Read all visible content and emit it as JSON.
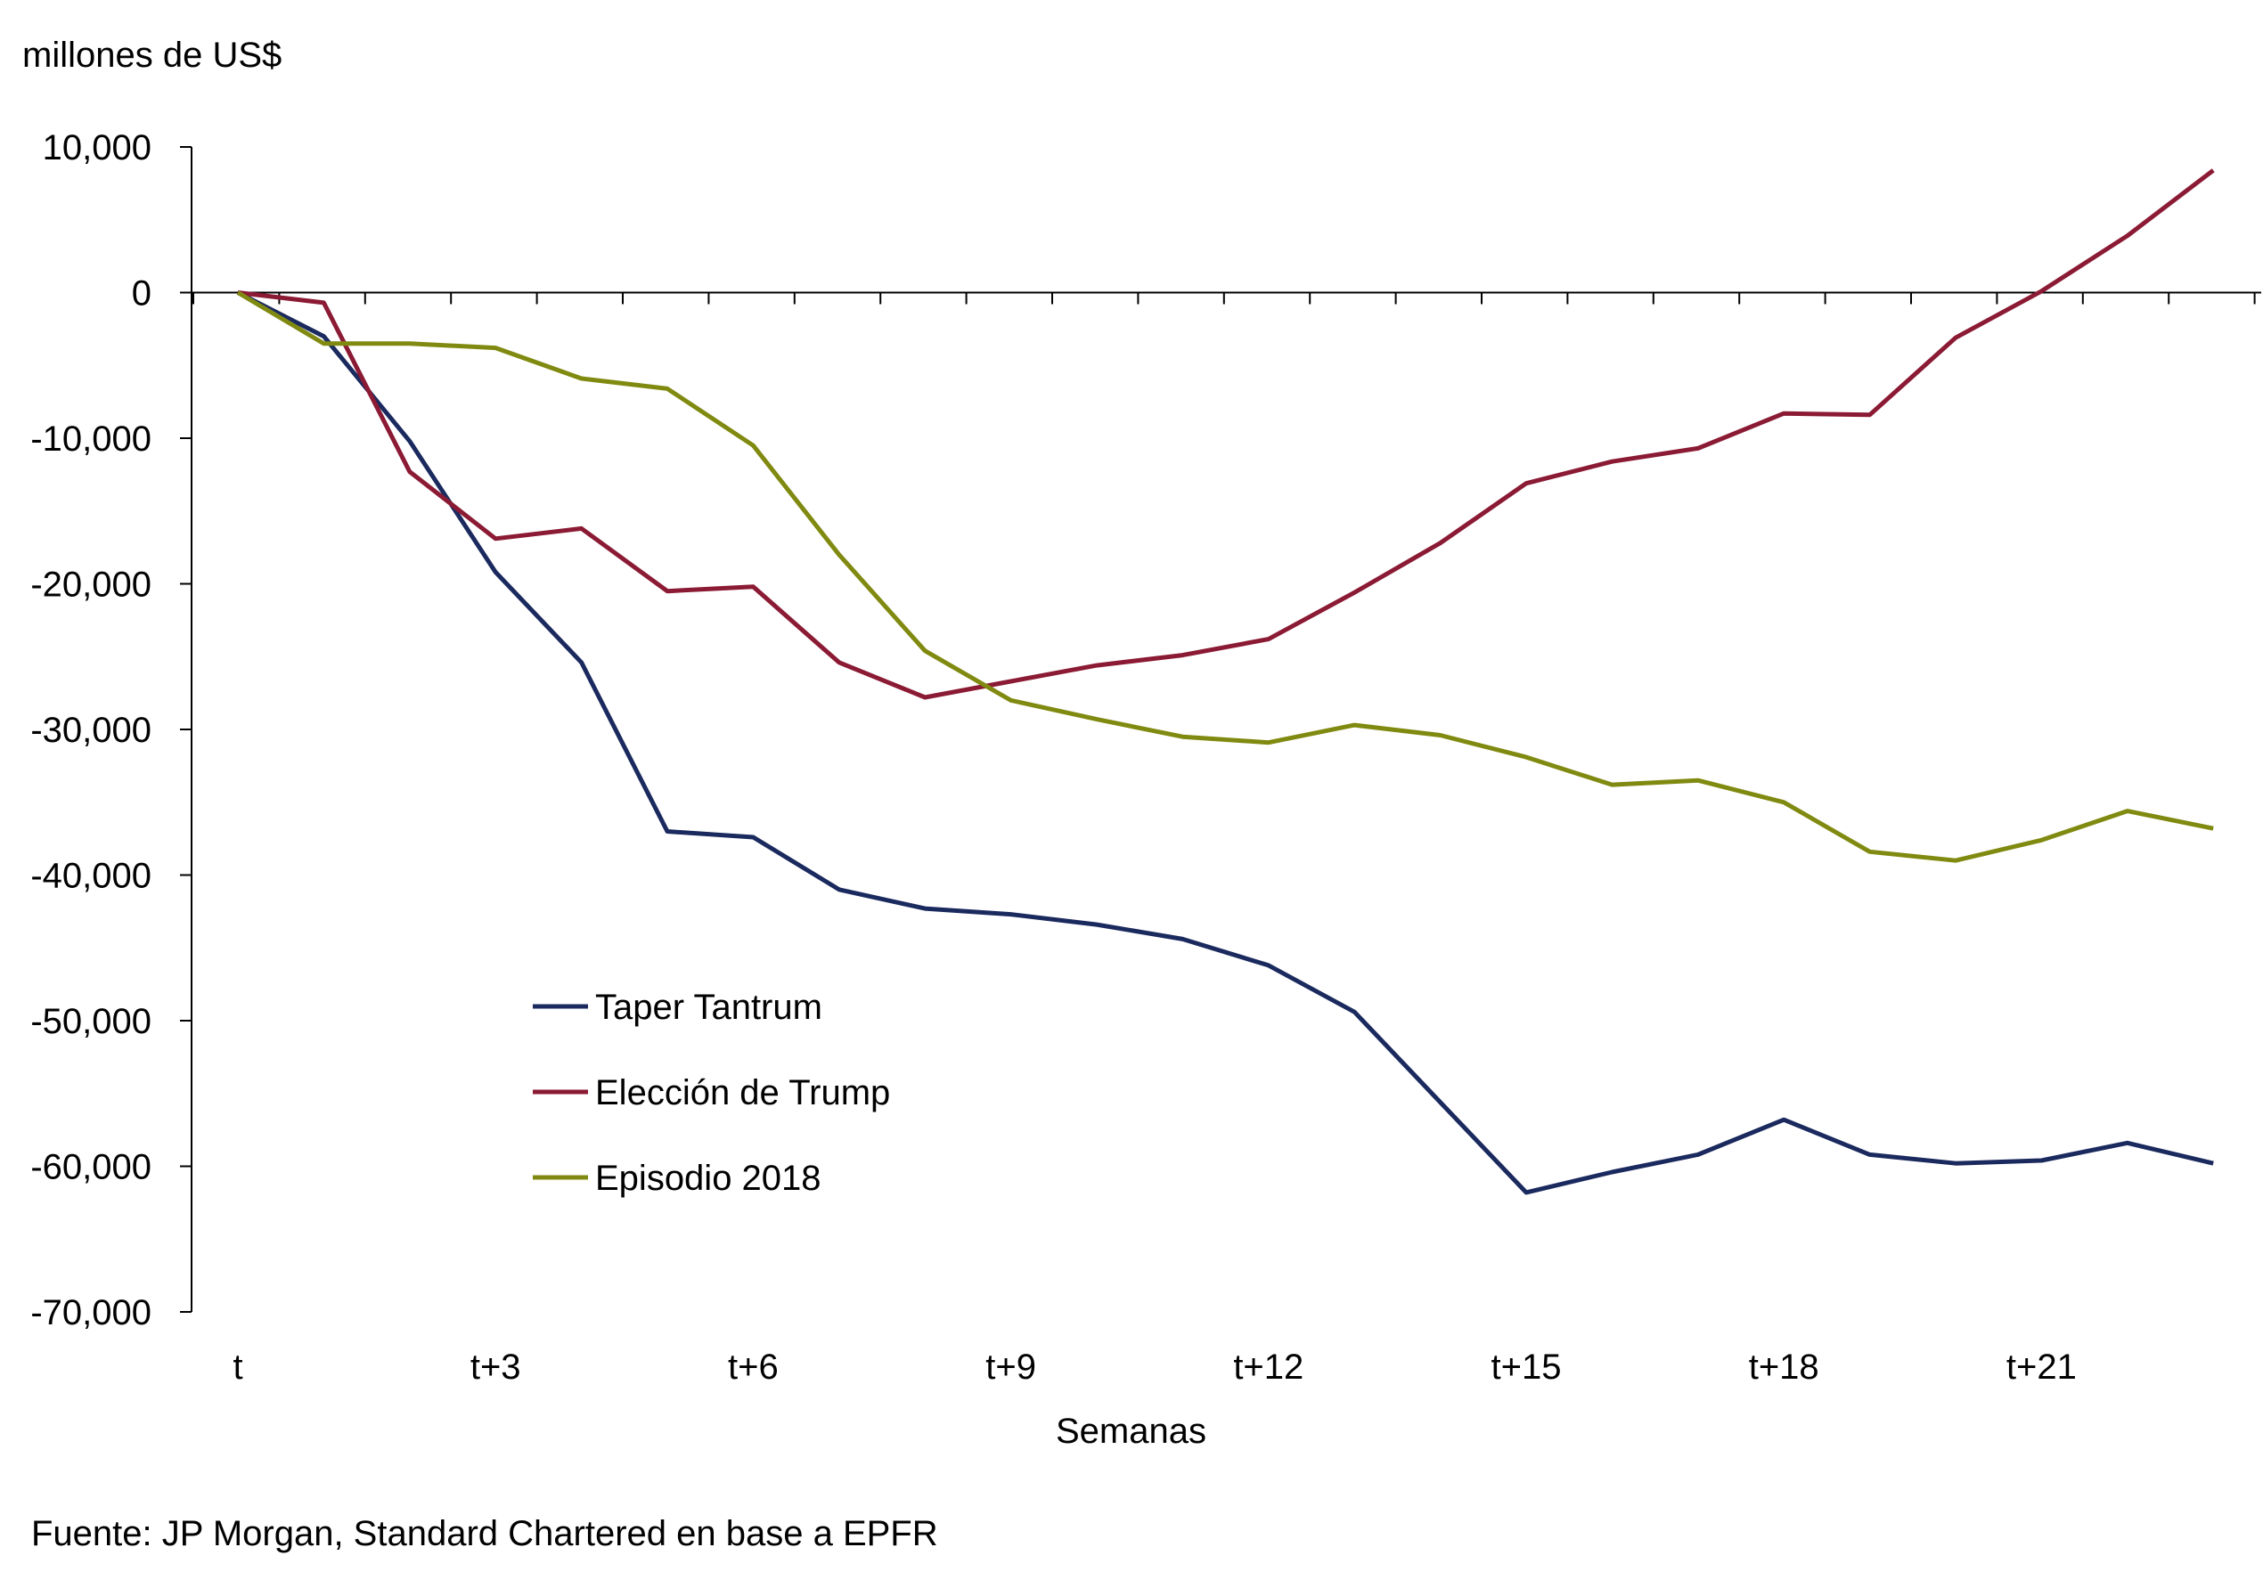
{
  "chart_data": {
    "type": "line",
    "unit_label": "millones de US$",
    "xlabel": "Semanas",
    "source": "Fuente: JP Morgan, Standard Chartered  en base a EPFR",
    "x": [
      "t",
      "t+1",
      "t+2",
      "t+3",
      "t+4",
      "t+5",
      "t+6",
      "t+7",
      "t+8",
      "t+9",
      "t+10",
      "t+11",
      "t+12",
      "t+13",
      "t+14",
      "t+15",
      "t+16",
      "t+17",
      "t+18",
      "t+19",
      "t+20",
      "t+21",
      "t+22",
      "t+23"
    ],
    "x_tick_labels": [
      "t",
      "t+3",
      "t+6",
      "t+9",
      "t+12",
      "t+15",
      "t+18",
      "t+21"
    ],
    "y_tick_labels": [
      "10,000",
      "0",
      "-10,000",
      "-20,000",
      "-30,000",
      "-40,000",
      "-50,000",
      "-60,000",
      "-70,000"
    ],
    "ylim": [
      -70000,
      10000
    ],
    "series": [
      {
        "name": "Taper Tantrum",
        "color": "#1b2a5e",
        "values": [
          0,
          -3000,
          -10200,
          -19200,
          -25400,
          -37000,
          -37400,
          -41000,
          -42300,
          -42700,
          -43400,
          -44400,
          -46200,
          -49400,
          -55600,
          -61800,
          -60400,
          -59200,
          -56800,
          -59200,
          -59800,
          -59600,
          -58400,
          -59800
        ]
      },
      {
        "name": "Elección de Trump",
        "color": "#8b1a34",
        "values": [
          0,
          -700,
          -12300,
          -16900,
          -16200,
          -20500,
          -20200,
          -25400,
          -27800,
          -26700,
          -25600,
          -24900,
          -23800,
          -20600,
          -17200,
          -13100,
          -11600,
          -10700,
          -8300,
          -8400,
          -3100,
          100,
          3900,
          8400
        ]
      },
      {
        "name": "Episodio 2018",
        "color": "#808a10",
        "values": [
          0,
          -3500,
          -3500,
          -3800,
          -5900,
          -6600,
          -10500,
          -18000,
          -24600,
          -28000,
          -29300,
          -30500,
          -30900,
          -29700,
          -30400,
          -31900,
          -33800,
          -33500,
          -35000,
          -38400,
          -39000,
          -37600,
          -35600,
          -36800
        ]
      }
    ]
  }
}
